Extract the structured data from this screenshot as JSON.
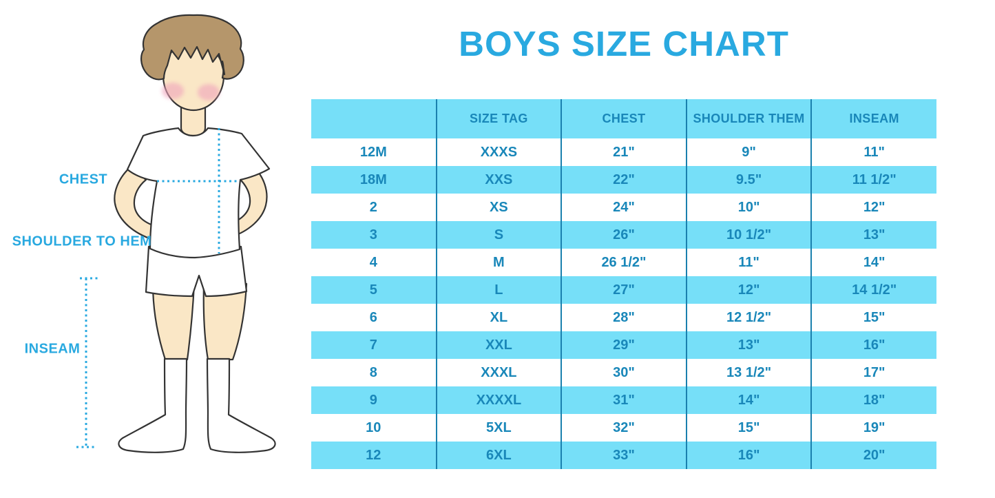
{
  "page": {
    "title": "BOYS SIZE CHART"
  },
  "colors": {
    "accent_blue": "#29A9E0",
    "band_cyan": "#76DFF8",
    "table_text_blue": "#1987B9",
    "divider_blue": "#1A80AE",
    "hair_brown": "#B5966B",
    "skin_tone": "#FAE7C6",
    "blush_pink": "#F0A3BB",
    "outline_dark": "#333333"
  },
  "figure": {
    "description": "illustrated boy in white t-shirt, shorts and knee socks with dotted measurement guides",
    "labels": {
      "chest": "CHEST",
      "shoulder_to_hem": "SHOULDER TO HEM",
      "inseam": "INSEAM"
    }
  },
  "chart_data": {
    "type": "table",
    "title": "BOYS SIZE CHART",
    "columns": [
      "",
      "SIZE TAG",
      "CHEST",
      "SHOULDER THEM",
      "INSEAM"
    ],
    "rows": [
      [
        "12M",
        "XXXS",
        "21\"",
        "9\"",
        "11\""
      ],
      [
        "18M",
        "XXS",
        "22\"",
        "9.5\"",
        "11 1/2\""
      ],
      [
        "2",
        "XS",
        "24\"",
        "10\"",
        "12\""
      ],
      [
        "3",
        "S",
        "26\"",
        "10 1/2\"",
        "13\""
      ],
      [
        "4",
        "M",
        "26 1/2\"",
        "11\"",
        "14\""
      ],
      [
        "5",
        "L",
        "27\"",
        "12\"",
        "14 1/2\""
      ],
      [
        "6",
        "XL",
        "28\"",
        "12 1/2\"",
        "15\""
      ],
      [
        "7",
        "XXL",
        "29\"",
        "13\"",
        "16\""
      ],
      [
        "8",
        "XXXL",
        "30\"",
        "13 1/2\"",
        "17\""
      ],
      [
        "9",
        "XXXXL",
        "31\"",
        "14\"",
        "18\""
      ],
      [
        "10",
        "5XL",
        "32\"",
        "15\"",
        "19\""
      ],
      [
        "12",
        "6XL",
        "33\"",
        "16\"",
        "20\""
      ]
    ],
    "row_banding": "header cyan; data rows alternate white/cyan starting white",
    "grid": "vertical column dividers only, no outer border"
  }
}
